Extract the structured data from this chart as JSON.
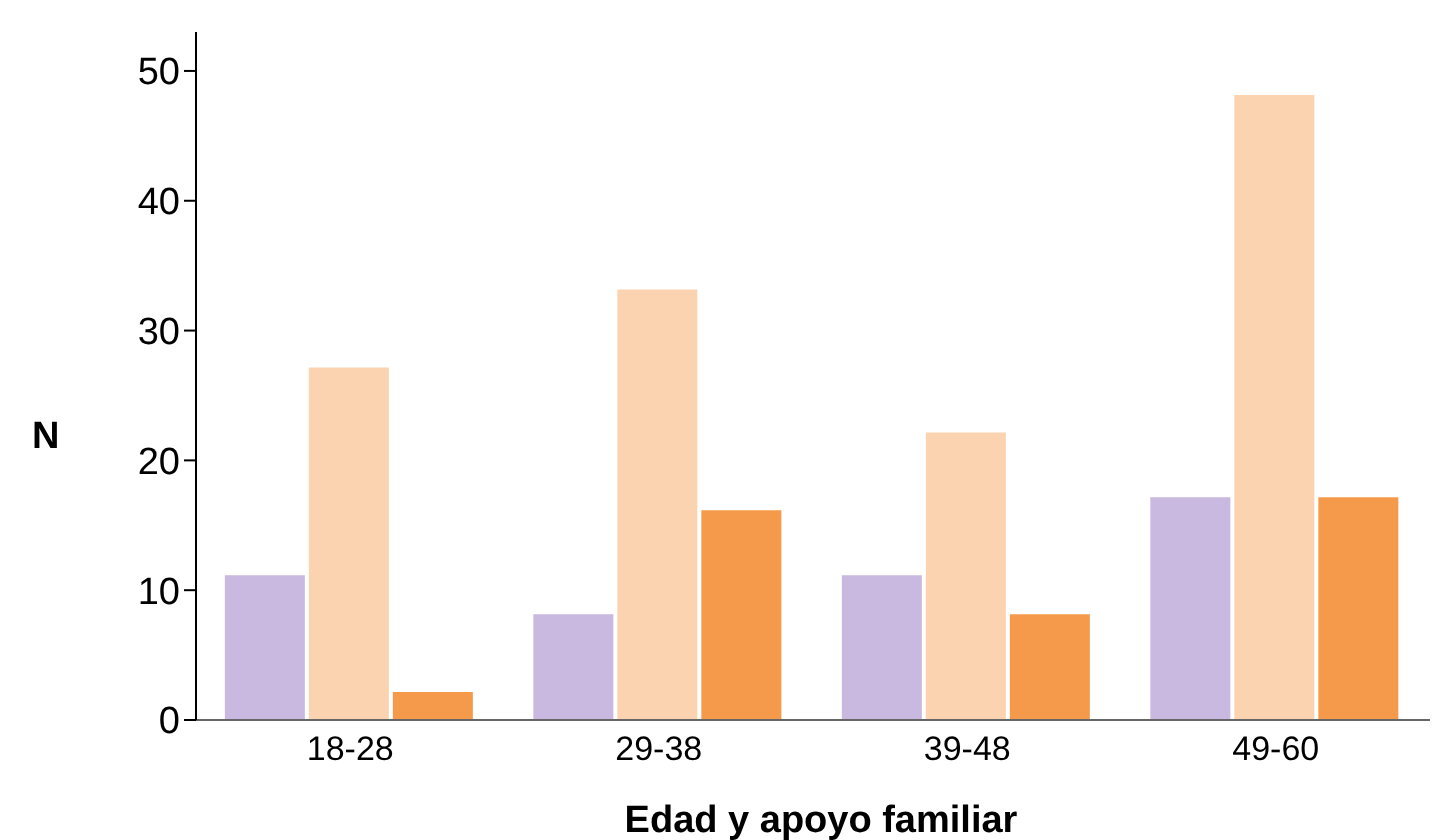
{
  "chart_data": {
    "type": "bar",
    "xlabel": "Edad y apoyo familiar",
    "ylabel": "N",
    "categories": [
      "18-28",
      "29-38",
      "39-48",
      "49-60"
    ],
    "series": [
      {
        "color": "#c9b8e0",
        "values": [
          11,
          8,
          11,
          17
        ]
      },
      {
        "color": "#fbd3b0",
        "values": [
          27,
          33,
          22,
          48
        ]
      },
      {
        "color": "#f59a4a",
        "values": [
          2,
          16,
          8,
          17
        ]
      }
    ],
    "ylim": [
      0,
      53
    ],
    "yticks": [
      0,
      10,
      20,
      30,
      40,
      50
    ],
    "grid": false
  }
}
